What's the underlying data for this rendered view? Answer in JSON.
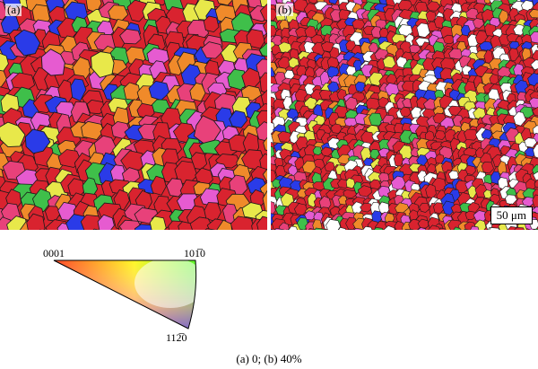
{
  "panels": [
    {
      "label": "(a)",
      "tone": "coarse",
      "seed": 11
    },
    {
      "label": "(b)",
      "tone": "fine",
      "seed": 29
    }
  ],
  "scale_bar": {
    "text": "50 μm"
  },
  "legend": {
    "corner_0001": "0001",
    "corner_1010": "10̅ ̅",
    "corner_1010_text": "101̅0",
    "corner_1120": "112̅0"
  },
  "caption": "(a) 0; (b) 40%",
  "colors": {
    "red": "#d9232f",
    "pink": "#e8417a",
    "magenta": "#e65bd0",
    "orange": "#f08a2a",
    "yellow": "#e8e84a",
    "blue": "#2a3be8",
    "green": "#3fbf4a",
    "white": "#ffffff",
    "boundary": "#1a1a1a"
  }
}
